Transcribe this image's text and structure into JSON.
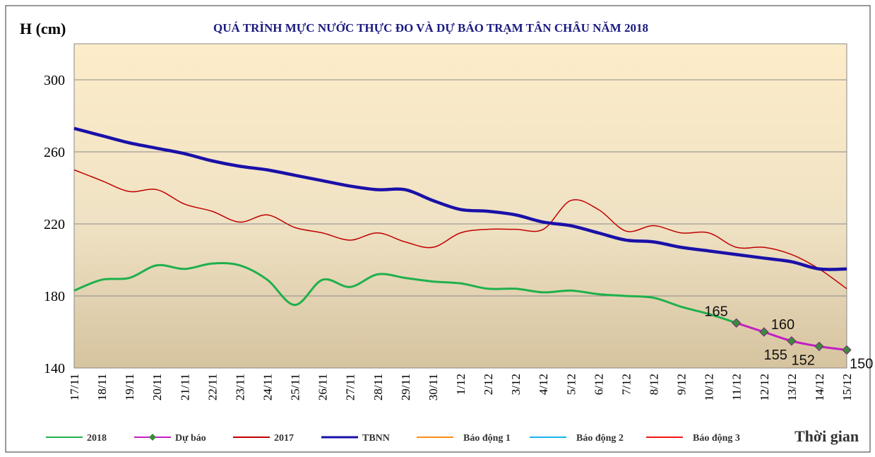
{
  "chart_data": {
    "type": "line",
    "title": "QUÁ TRÌNH MỰC NƯỚC THỰC ĐO VÀ DỰ BÁO TRẠM TÂN CHÂU NĂM 2018",
    "y_label": "H (cm)",
    "x_label": "Thời gian",
    "categories": [
      "17/11",
      "18/11",
      "19/11",
      "20/11",
      "21/11",
      "22/11",
      "23/11",
      "24/11",
      "25/11",
      "26/11",
      "27/11",
      "28/11",
      "29/11",
      "30/11",
      "1/12",
      "2/12",
      "3/12",
      "4/12",
      "5/12",
      "6/12",
      "7/12",
      "8/12",
      "9/12",
      "10/12",
      "11/12",
      "12/12",
      "13/12",
      "14/12",
      "15/12"
    ],
    "ylim": [
      140,
      320
    ],
    "yticks": [
      140,
      180,
      220,
      260,
      300
    ],
    "grid": true,
    "series": [
      {
        "name": "2018",
        "color": "#1fb04c",
        "values": [
          183,
          189,
          190,
          197,
          195,
          198,
          197,
          189,
          175,
          189,
          185,
          192,
          190,
          188,
          187,
          184,
          184,
          182,
          183,
          181,
          180,
          179,
          174,
          170,
          165,
          null,
          null,
          null,
          null
        ]
      },
      {
        "name": "Dự báo",
        "color": "#c21fc2",
        "marker": "diamond",
        "values": [
          null,
          null,
          null,
          null,
          null,
          null,
          null,
          null,
          null,
          null,
          null,
          null,
          null,
          null,
          null,
          null,
          null,
          null,
          null,
          null,
          null,
          null,
          null,
          null,
          165,
          160,
          155,
          152,
          150
        ]
      },
      {
        "name": "2017",
        "color": "#c00000",
        "values": [
          250,
          244,
          238,
          239,
          231,
          227,
          221,
          225,
          218,
          215,
          211,
          215,
          210,
          207,
          215,
          217,
          217,
          217,
          233,
          228,
          216,
          219,
          215,
          215,
          207,
          207,
          203,
          195,
          184
        ]
      },
      {
        "name": "TBNN",
        "color": "#1a10a8",
        "values": [
          273,
          269,
          265,
          262,
          259,
          255,
          252,
          250,
          247,
          244,
          241,
          239,
          239,
          233,
          228,
          227,
          225,
          221,
          219,
          215,
          211,
          210,
          207,
          205,
          203,
          201,
          199,
          195,
          195
        ]
      },
      {
        "name": "Báo động 1",
        "color": "#ff8c1a",
        "values": [
          null,
          null,
          null,
          null,
          null,
          null,
          null,
          null,
          null,
          null,
          null,
          null,
          null,
          null,
          null,
          null,
          null,
          null,
          null,
          null,
          null,
          null,
          null,
          null,
          null,
          null,
          null,
          null,
          null
        ]
      },
      {
        "name": "Báo động 2",
        "color": "#19b4f0",
        "values": [
          null,
          null,
          null,
          null,
          null,
          null,
          null,
          null,
          null,
          null,
          null,
          null,
          null,
          null,
          null,
          null,
          null,
          null,
          null,
          null,
          null,
          null,
          null,
          null,
          null,
          null,
          null,
          null,
          null
        ]
      },
      {
        "name": "Báo động 3",
        "color": "#f01818",
        "values": [
          null,
          null,
          null,
          null,
          null,
          null,
          null,
          null,
          null,
          null,
          null,
          null,
          null,
          null,
          null,
          null,
          null,
          null,
          null,
          null,
          null,
          null,
          null,
          null,
          null,
          null,
          null,
          null,
          null
        ]
      }
    ]
  }
}
